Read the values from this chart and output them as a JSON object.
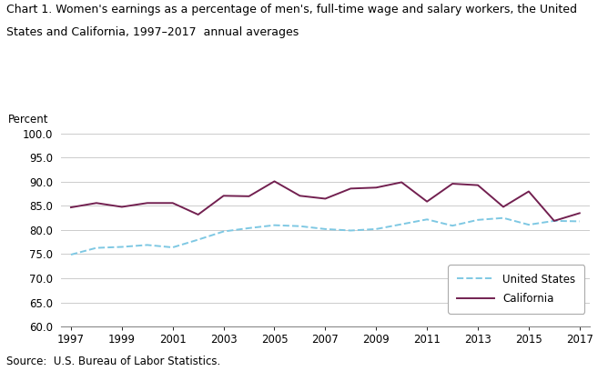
{
  "title_line1": "Chart 1. Women's earnings as a percentage of men's, full-time wage and salary workers, the United",
  "title_line2": "States and California, 1997–2017  annual averages",
  "ylabel": "Percent",
  "source": "Source:  U.S. Bureau of Labor Statistics.",
  "years": [
    1997,
    1998,
    1999,
    2000,
    2001,
    2002,
    2003,
    2004,
    2005,
    2006,
    2007,
    2008,
    2009,
    2010,
    2011,
    2012,
    2013,
    2014,
    2015,
    2016,
    2017
  ],
  "us_data": [
    74.9,
    76.3,
    76.5,
    76.9,
    76.4,
    78.0,
    79.7,
    80.4,
    81.0,
    80.8,
    80.2,
    79.9,
    80.2,
    81.2,
    82.2,
    80.9,
    82.1,
    82.5,
    81.1,
    81.9,
    81.8
  ],
  "ca_data": [
    84.7,
    85.6,
    84.8,
    85.6,
    85.6,
    83.2,
    87.1,
    87.0,
    90.1,
    87.1,
    86.5,
    88.6,
    88.8,
    89.9,
    85.9,
    89.6,
    89.3,
    84.8,
    88.0,
    81.9,
    83.5
  ],
  "us_color": "#7EC8E3",
  "ca_color": "#722050",
  "ylim": [
    60.0,
    100.0
  ],
  "yticks": [
    60.0,
    65.0,
    70.0,
    75.0,
    80.0,
    85.0,
    90.0,
    95.0,
    100.0
  ],
  "xticks": [
    1997,
    1999,
    2001,
    2003,
    2005,
    2007,
    2009,
    2011,
    2013,
    2015,
    2017
  ],
  "grid_color": "#CCCCCC",
  "bg_color": "#FFFFFF",
  "plot_bg_color": "#FFFFFF",
  "legend_us": "United States",
  "legend_ca": "California",
  "title_fontsize": 9.0,
  "axis_label_fontsize": 8.5,
  "tick_fontsize": 8.5,
  "source_fontsize": 8.5
}
